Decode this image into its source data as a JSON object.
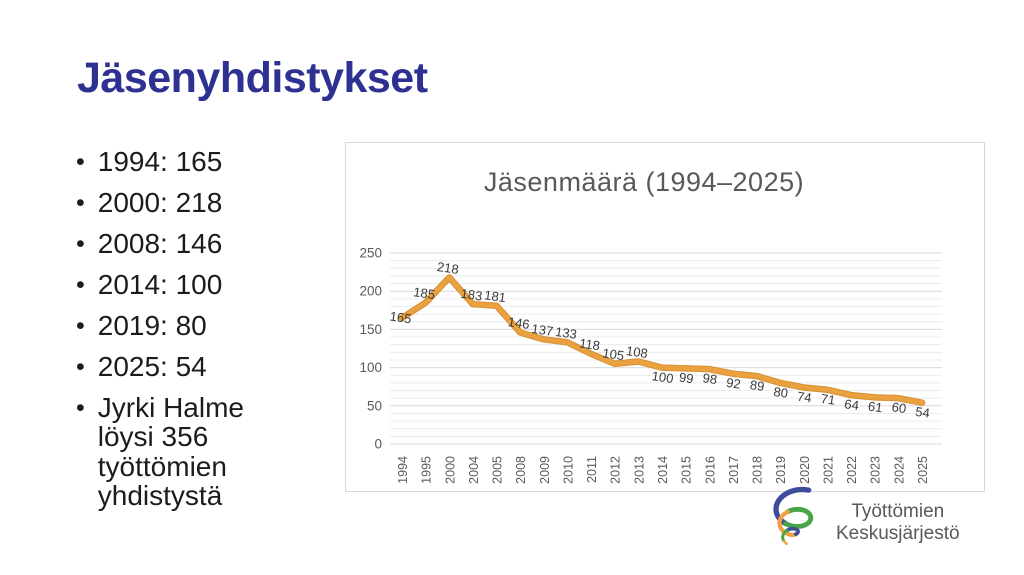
{
  "slide": {
    "title": "Jäsenyhdistykset",
    "bullets": [
      "1994: 165",
      "2000: 218",
      "2008: 146",
      "2014: 100",
      "2019: 80",
      "2025: 54",
      "Jyrki Halme löysi 356 työttömien yhdistystä"
    ]
  },
  "chart_data": {
    "type": "line",
    "title": "Jäsenmäärä (1994–2025)",
    "categories": [
      "1994",
      "1995",
      "2000",
      "2004",
      "2005",
      "2008",
      "2009",
      "2010",
      "2011",
      "2012",
      "2013",
      "2014",
      "2015",
      "2016",
      "2017",
      "2018",
      "2019",
      "2020",
      "2021",
      "2022",
      "2023",
      "2024",
      "2025"
    ],
    "values": [
      165,
      185,
      218,
      183,
      181,
      146,
      137,
      133,
      118,
      105,
      108,
      100,
      99,
      98,
      92,
      89,
      80,
      74,
      71,
      64,
      61,
      60,
      54
    ],
    "xlabel": "",
    "ylabel": "",
    "ylim": [
      0,
      250
    ],
    "y_ticks": [
      0,
      50,
      100,
      150,
      200,
      250
    ],
    "minor_grid_step": 10,
    "grid": true,
    "legend": "none",
    "data_labels": true
  },
  "logo": {
    "line1": "Työttömien",
    "line2": "Keskusjärjestö",
    "spiral_icon": "spiral-swirl-icon"
  },
  "colors": {
    "title": "#2e3192",
    "body_text": "#1c1c1c",
    "chart_line": "#e9a23f",
    "chart_line_shade": "#d98f33",
    "chart_title": "#595959",
    "axis_text": "#595959",
    "data_label": "#3a3a3a",
    "grid_major": "#d9d9d9",
    "grid_minor": "#ececec",
    "chart_border": "#d8d8d8",
    "logo_text": "#58595b",
    "logo_navy": "#3e4c9b",
    "logo_green": "#48a447",
    "logo_orange": "#eea13f"
  }
}
